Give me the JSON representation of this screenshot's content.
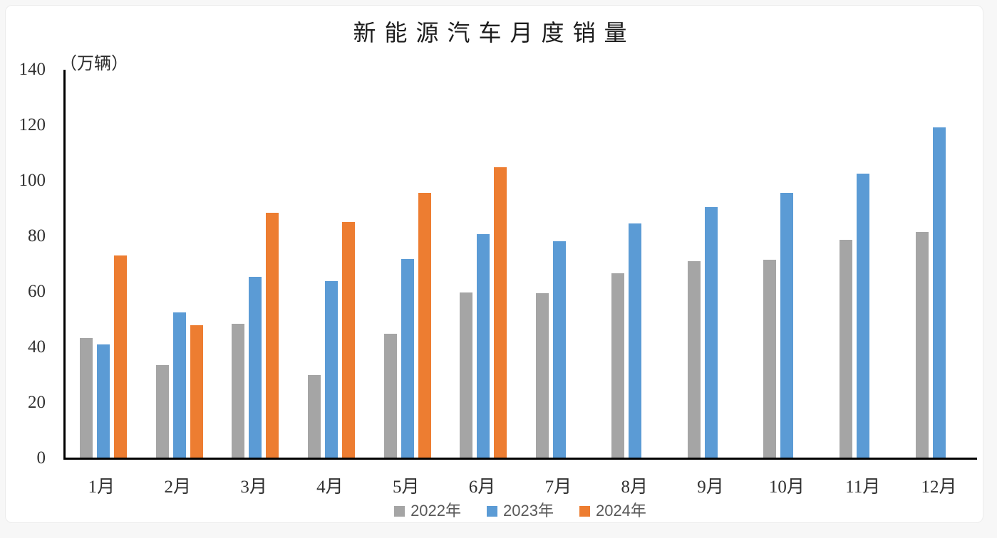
{
  "page": {
    "background_color": "#f7f7f7",
    "card_background_color": "#ffffff"
  },
  "chart_data": {
    "type": "bar",
    "title": "新能源汽车月度销量",
    "unit_label": "（万辆）",
    "categories": [
      "1月",
      "2月",
      "3月",
      "4月",
      "5月",
      "6月",
      "7月",
      "8月",
      "9月",
      "10月",
      "11月",
      "12月"
    ],
    "series": [
      {
        "name": "2022年",
        "color": "#A5A5A5",
        "values": [
          43.1,
          33.4,
          48.4,
          29.9,
          44.7,
          59.6,
          59.3,
          66.6,
          70.8,
          71.4,
          78.6,
          81.4
        ]
      },
      {
        "name": "2023年",
        "color": "#5B9BD5",
        "values": [
          40.8,
          52.5,
          65.3,
          63.6,
          71.7,
          80.6,
          78.0,
          84.6,
          90.4,
          95.6,
          102.6,
          119.1
        ]
      },
      {
        "name": "2024年",
        "color": "#ED7D31",
        "values": [
          72.9,
          47.7,
          88.3,
          85.0,
          95.5,
          104.9,
          null,
          null,
          null,
          null,
          null,
          null
        ]
      }
    ],
    "ylim": [
      0,
      140
    ],
    "yticks": [
      0,
      20,
      40,
      60,
      80,
      100,
      120,
      140
    ],
    "grid": false,
    "axis_color": "#000000",
    "legend_position": "bottom"
  }
}
